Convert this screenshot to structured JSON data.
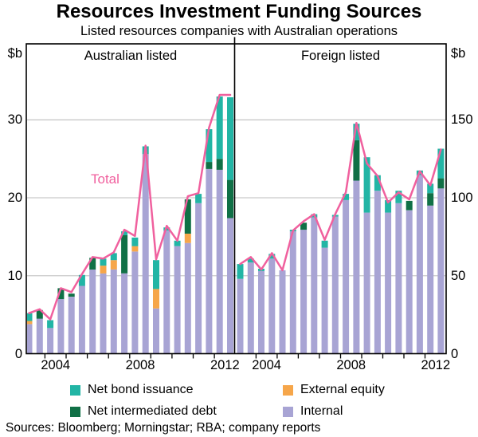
{
  "header": {
    "title": "Resources Investment Funding Sources",
    "subtitle": "Listed resources companies with Australian operations"
  },
  "axes": {
    "left_unit": "$b",
    "right_unit": "$b",
    "left_ticks": [
      0,
      10,
      20,
      30
    ],
    "right_ticks": [
      0,
      50,
      100,
      150
    ],
    "x_labels": [
      "2004",
      "2008",
      "2012"
    ]
  },
  "total_label": "Total",
  "legend": {
    "items": [
      {
        "label": "Net bond issuance",
        "color_key": "bonds"
      },
      {
        "label": "External equity",
        "color_key": "external_equity"
      },
      {
        "label": "Net intermediated debt",
        "color_key": "intermediated_debt"
      },
      {
        "label": "Internal",
        "color_key": "internal"
      }
    ]
  },
  "footer": {
    "sources": "Sources: Bloomberg; Morningstar; RBA; company reports"
  },
  "chart_data": {
    "type": "bar",
    "stacked": true,
    "frequency": "half-yearly",
    "grid": "on",
    "legend_position": "bottom",
    "categories": [
      "2003 H1",
      "2003 H2",
      "2004 H1",
      "2004 H2",
      "2005 H1",
      "2005 H2",
      "2006 H1",
      "2006 H2",
      "2007 H1",
      "2007 H2",
      "2008 H1",
      "2008 H2",
      "2009 H1",
      "2009 H2",
      "2010 H1",
      "2010 H2",
      "2011 H1",
      "2011 H2",
      "2012 H1",
      "2012 H2"
    ],
    "panels": [
      {
        "name": "Australian listed",
        "axis": "left",
        "unit": "$b",
        "ylim": [
          0,
          40
        ],
        "gridline_values": [
          10,
          20,
          30
        ],
        "series": [
          {
            "name": "Internal",
            "type": "bar",
            "color_key": "internal",
            "values": [
              3.8,
              4.5,
              3.3,
              7.0,
              7.3,
              8.7,
              10.8,
              10.3,
              10.8,
              10.3,
              13.1,
              25.6,
              5.8,
              15.8,
              13.8,
              14.2,
              19.3,
              23.7,
              23.6,
              17.4
            ]
          },
          {
            "name": "External equity",
            "type": "bar",
            "color_key": "external_equity",
            "values": [
              0.4,
              0,
              0,
              0,
              0,
              0,
              0,
              1.0,
              1.2,
              0,
              0.7,
              0,
              2.5,
              0,
              0,
              1.2,
              0,
              0,
              0,
              0
            ]
          },
          {
            "name": "Net intermediated debt",
            "type": "bar",
            "color_key": "intermediated_debt",
            "values": [
              0,
              1.1,
              0,
              1.4,
              0.4,
              0,
              1.5,
              0,
              0,
              4.9,
              0,
              0,
              0,
              0,
              0,
              4.4,
              0,
              0.9,
              1.4,
              4.9
            ]
          },
          {
            "name": "Net bond issuance",
            "type": "bar",
            "color_key": "bonds",
            "values": [
              1.0,
              0,
              1.0,
              0,
              0,
              1.4,
              0,
              0.9,
              0.9,
              0.5,
              1.1,
              1.0,
              3.7,
              0.4,
              0.7,
              0,
              1.2,
              4.2,
              8.0,
              10.6
            ]
          },
          {
            "name": "Total",
            "type": "line",
            "color_key": "total_line",
            "values": [
              5.2,
              5.7,
              4.4,
              8.4,
              7.9,
              10.2,
              12.4,
              12.2,
              13.0,
              15.9,
              15.1,
              26.7,
              12.1,
              16.4,
              14.5,
              20.2,
              20.6,
              29.0,
              33.2,
              33.2
            ]
          }
        ]
      },
      {
        "name": "Foreign listed",
        "axis": "right",
        "unit": "$b",
        "ylim": [
          0,
          200
        ],
        "gridline_values": [
          50,
          100,
          150
        ],
        "series": [
          {
            "name": "Internal",
            "type": "bar",
            "color_key": "internal",
            "values": [
              48,
              58.5,
              53,
              61,
              53.5,
              78.5,
              79.5,
              87.5,
              68,
              88,
              98.5,
              111,
              90.5,
              104.5,
              90.5,
              96.5,
              92,
              114.5,
              95,
              106
            ]
          },
          {
            "name": "External equity",
            "type": "bar",
            "color_key": "external_equity",
            "values": [
              0,
              0,
              0,
              0,
              0,
              0,
              0,
              0,
              0,
              0,
              0,
              0,
              0,
              0,
              0,
              0,
              0,
              0,
              0,
              0
            ]
          },
          {
            "name": "Net intermediated debt",
            "type": "bar",
            "color_key": "intermediated_debt",
            "values": [
              0,
              0,
              0,
              0,
              0,
              0,
              4.5,
              0,
              0,
              0,
              0,
              26,
              0,
              0,
              0,
              0,
              6,
              0,
              8,
              6.5
            ]
          },
          {
            "name": "Net bond issuance",
            "type": "bar",
            "color_key": "bonds",
            "values": [
              9.5,
              2.5,
              1.5,
              3,
              0,
              1,
              0,
              2,
              4.5,
              1,
              4,
              10.5,
              35.5,
              10,
              8,
              8,
              0,
              3,
              6,
              19
            ]
          },
          {
            "name": "Total",
            "type": "line",
            "color_key": "total_line",
            "values": [
              57.5,
              62,
              54,
              64.5,
              53.5,
              79,
              85,
              89.5,
              73,
              89.5,
              103.5,
              148,
              122,
              114,
              97,
              103.5,
              99,
              117,
              108,
              131
            ]
          }
        ]
      }
    ],
    "colors": {
      "bonds": "#22b5a5",
      "external_equity": "#f6a64a",
      "intermediated_debt": "#107046",
      "internal": "#a8a4d4",
      "total_line": "#f0609e",
      "grid": "#c9c9c9",
      "frame": "#000000"
    }
  }
}
